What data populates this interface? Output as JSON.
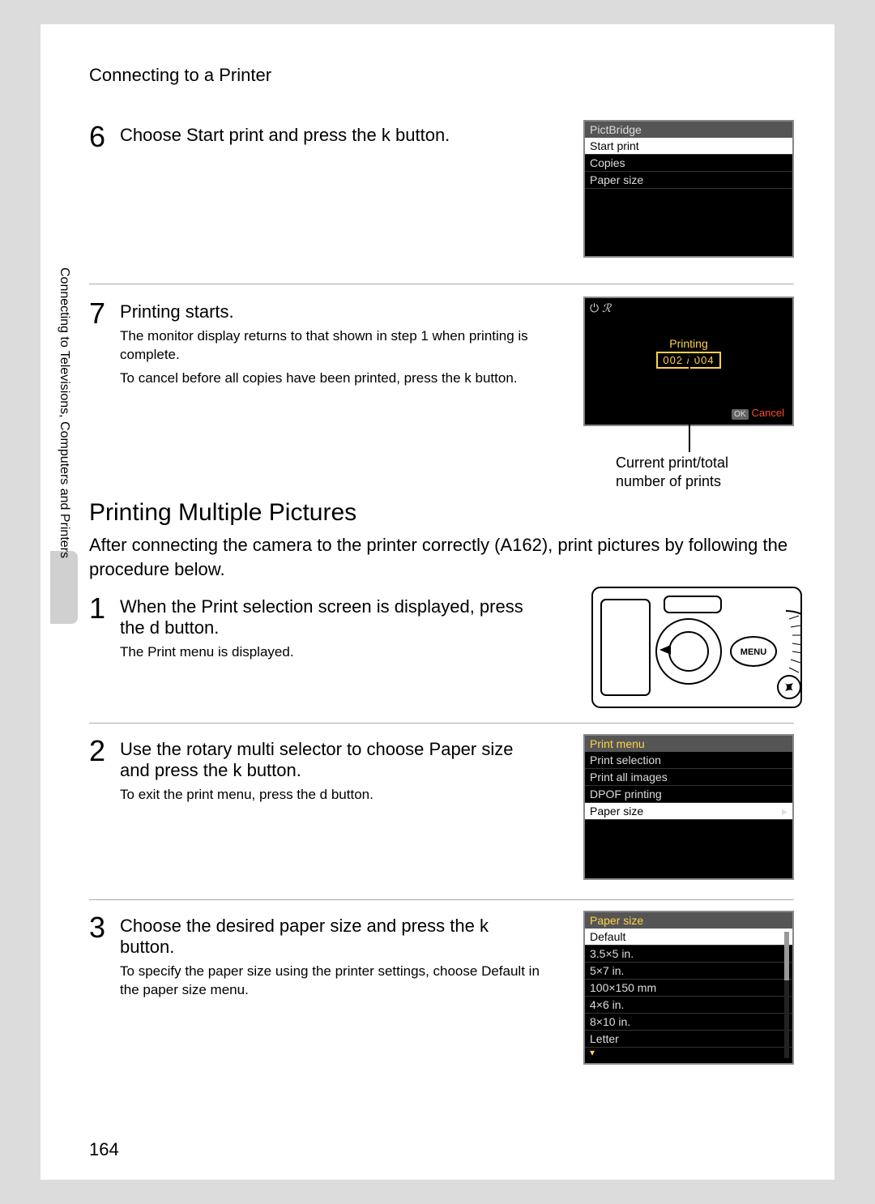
{
  "breadcrumb": "Connecting to a Printer",
  "side_label": "Connecting to Televisions, Computers and Printers",
  "page_number": "164",
  "step6": {
    "num": "6",
    "text_parts": {
      "a": "Choose ",
      "b": "Start print",
      "c": " and press the ",
      "d": "k",
      "e": " button."
    }
  },
  "lcd_pictbridge": {
    "title": "PictBridge",
    "rows": [
      "Start print",
      "Copies",
      "Paper size"
    ],
    "selected_index": 0
  },
  "step7": {
    "num": "7",
    "title": "Printing starts.",
    "p1": "The monitor display returns to that shown in step 1 when printing is complete.",
    "p2_parts": {
      "a": "To cancel before all copies have been printed, press the ",
      "b": "k",
      "c": " button."
    }
  },
  "lcd_printing": {
    "printing_label": "Printing",
    "counter": "002 / 004",
    "cancel": "Cancel"
  },
  "printing_caption": {
    "l1": "Current print/total",
    "l2": "number of prints"
  },
  "multi_section": {
    "title": "Printing Multiple Pictures",
    "para_parts": {
      "a": "After connecting the camera to the printer correctly (",
      "b": "A",
      "c": "162), print pictures by following the procedure below."
    }
  },
  "mstep1": {
    "num": "1",
    "title_parts": {
      "a": "When the ",
      "b": "Print selection",
      "c": " screen is displayed, press the ",
      "d": "d",
      "e": " button."
    },
    "p1_parts": {
      "a": "The ",
      "b": "Print menu",
      "c": " is displayed."
    }
  },
  "cam_label": "MENU",
  "mstep2": {
    "num": "2",
    "title_parts": {
      "a": "Use the rotary multi selector to choose ",
      "b": "Paper size",
      "c": " and press the ",
      "d": "k",
      "e": " button."
    },
    "p1_parts": {
      "a": "To exit the print menu, press the ",
      "b": "d",
      "c": " button."
    }
  },
  "lcd_printmenu": {
    "title": "Print menu",
    "rows": [
      "Print selection",
      "Print all images",
      "DPOF printing",
      "Paper size"
    ],
    "selected_index": 3
  },
  "mstep3": {
    "num": "3",
    "title_parts": {
      "a": "Choose the desired paper size and press the ",
      "b": "k",
      "c": " button."
    },
    "p1_parts": {
      "a": "To specify the paper size using the printer settings, choose ",
      "b": "Default",
      "c": " in the paper size menu."
    }
  },
  "lcd_papersize": {
    "title": "Paper size",
    "rows": [
      "Default",
      "3.5×5 in.",
      "5×7 in.",
      "100×150 mm",
      "4×6 in.",
      "8×10 in.",
      "Letter"
    ],
    "selected_index": 0
  }
}
